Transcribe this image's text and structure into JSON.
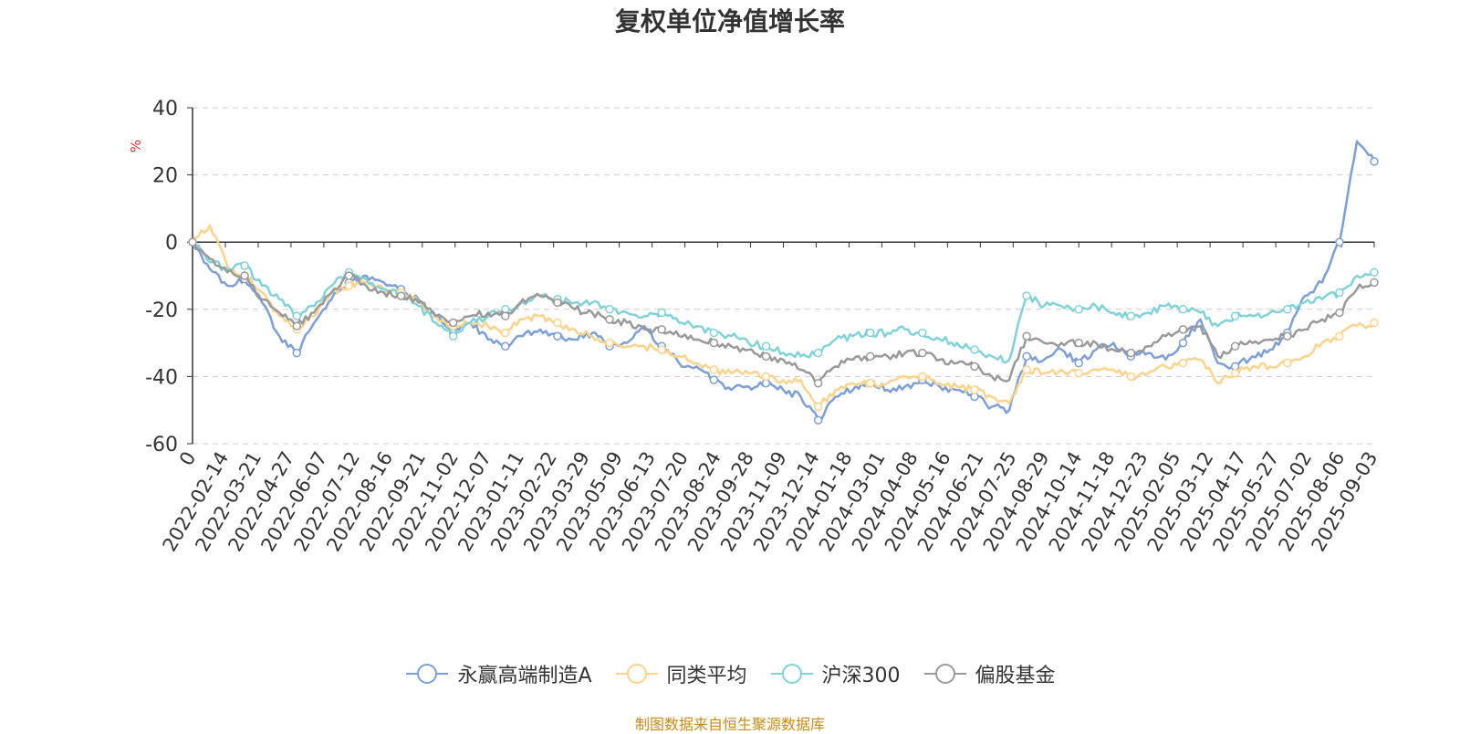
{
  "chart_data": {
    "type": "line",
    "title": "复权单位净值增长率",
    "ylabel": "%",
    "xlabel": "",
    "ylim": [
      -60,
      40
    ],
    "yticks": [
      40,
      20,
      0,
      -20,
      -40,
      -60
    ],
    "grid": true,
    "legend_position": "bottom",
    "x_tick_labels": [
      "0",
      "2022-02-14",
      "2022-03-21",
      "2022-04-27",
      "2022-06-07",
      "2022-07-12",
      "2022-08-16",
      "2022-09-21",
      "2022-11-02",
      "2022-12-07",
      "2023-01-11",
      "2023-02-22",
      "2023-03-29",
      "2023-05-09",
      "2023-06-13",
      "2023-07-20",
      "2023-08-24",
      "2023-09-28",
      "2023-11-09",
      "2023-12-14",
      "2024-01-18",
      "2024-03-01",
      "2024-04-08",
      "2024-05-16",
      "2024-06-21",
      "2024-07-25",
      "2024-08-29",
      "2024-10-14",
      "2024-11-18",
      "2024-12-23",
      "2025-02-05",
      "2025-03-12",
      "2025-04-17",
      "2025-05-27",
      "2025-07-02",
      "2025-08-06",
      "2025-09-03"
    ],
    "series": [
      {
        "name": "永赢高端制造A",
        "color": "#7b9fd9",
        "values": [
          0,
          -8,
          -13,
          -11,
          -18,
          -28,
          -33,
          -24,
          -17,
          -12,
          -10,
          -12,
          -14,
          -17,
          -22,
          -27,
          -24,
          -29,
          -31,
          -28,
          -26,
          -28,
          -29,
          -27,
          -31,
          -30,
          -25,
          -31,
          -36,
          -37,
          -41,
          -44,
          -43,
          -42,
          -44,
          -46,
          -53,
          -46,
          -44,
          -42,
          -44,
          -43,
          -41,
          -43,
          -44,
          -46,
          -49,
          -50,
          -34,
          -35,
          -32,
          -36,
          -32,
          -30,
          -34,
          -33,
          -35,
          -30,
          -23,
          -36,
          -37,
          -34,
          -32,
          -27,
          -16,
          -12,
          0,
          30,
          24
        ]
      },
      {
        "name": "同类平均",
        "color": "#fdd38a",
        "values": [
          0,
          5,
          -7,
          -10,
          -15,
          -22,
          -26,
          -22,
          -15,
          -13,
          -12,
          -14,
          -15,
          -18,
          -22,
          -25,
          -24,
          -25,
          -27,
          -23,
          -22,
          -24,
          -26,
          -28,
          -30,
          -31,
          -31,
          -32,
          -34,
          -36,
          -38,
          -39,
          -39,
          -40,
          -41,
          -41,
          -49,
          -44,
          -42,
          -42,
          -42,
          -40,
          -40,
          -42,
          -43,
          -44,
          -46,
          -48,
          -38,
          -39,
          -38,
          -39,
          -38,
          -38,
          -40,
          -39,
          -37,
          -36,
          -35,
          -42,
          -39,
          -37,
          -37,
          -36,
          -34,
          -30,
          -28,
          -25,
          -24
        ]
      },
      {
        "name": "沪深300",
        "color": "#7fd3d8",
        "values": [
          0,
          -6,
          -8,
          -7,
          -13,
          -17,
          -22,
          -19,
          -13,
          -9,
          -11,
          -14,
          -16,
          -19,
          -24,
          -28,
          -24,
          -22,
          -20,
          -18,
          -16,
          -17,
          -18,
          -18,
          -20,
          -21,
          -22,
          -21,
          -24,
          -25,
          -27,
          -28,
          -30,
          -31,
          -33,
          -34,
          -33,
          -29,
          -28,
          -27,
          -27,
          -26,
          -27,
          -29,
          -30,
          -32,
          -34,
          -35,
          -16,
          -19,
          -19,
          -20,
          -19,
          -21,
          -22,
          -21,
          -19,
          -20,
          -21,
          -25,
          -22,
          -22,
          -21,
          -20,
          -18,
          -17,
          -15,
          -10,
          -9
        ]
      },
      {
        "name": "偏股基金",
        "color": "#999999",
        "values": [
          0,
          -5,
          -9,
          -10,
          -17,
          -21,
          -25,
          -21,
          -15,
          -10,
          -13,
          -15,
          -16,
          -18,
          -22,
          -24,
          -22,
          -21,
          -22,
          -17,
          -16,
          -18,
          -20,
          -21,
          -23,
          -24,
          -26,
          -26,
          -28,
          -29,
          -30,
          -31,
          -32,
          -34,
          -35,
          -38,
          -42,
          -37,
          -35,
          -34,
          -34,
          -33,
          -33,
          -35,
          -36,
          -37,
          -40,
          -41,
          -28,
          -30,
          -30,
          -30,
          -30,
          -32,
          -33,
          -31,
          -28,
          -26,
          -25,
          -34,
          -31,
          -30,
          -29,
          -28,
          -26,
          -23,
          -21,
          -14,
          -12
        ]
      }
    ]
  },
  "source_text": "制图数据来自恒生聚源数据库"
}
